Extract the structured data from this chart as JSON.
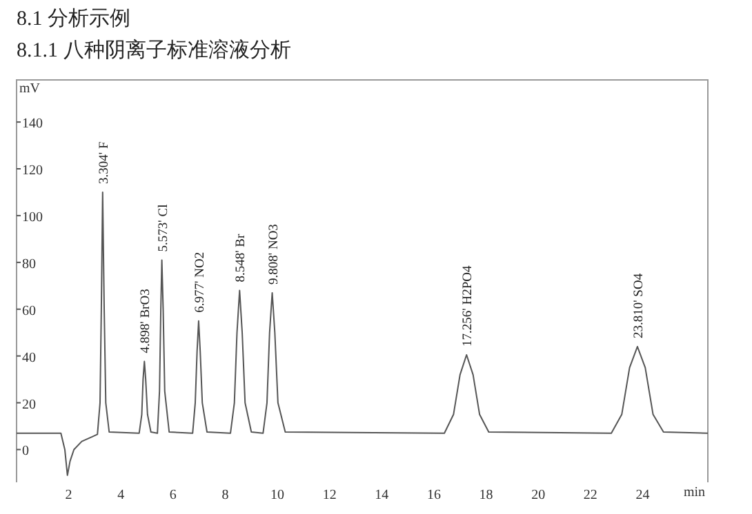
{
  "chart_data": {
    "type": "line",
    "title": "8.1 分析示例",
    "subtitle": "8.1.1 八种阴离子标准溶液分析",
    "xlabel": "min",
    "ylabel": "mV",
    "series": [
      {
        "color": "#555555",
        "x": [
          0,
          1.7,
          1.85,
          1.95,
          2.05,
          2.2,
          2.5,
          2.9,
          3.1,
          3.2,
          3.25,
          3.3,
          3.36,
          3.42,
          3.55,
          4.7,
          4.8,
          4.85,
          4.9,
          4.95,
          5.02,
          5.15,
          5.4,
          5.48,
          5.53,
          5.57,
          5.62,
          5.68,
          5.85,
          6.75,
          6.85,
          6.92,
          6.98,
          7.04,
          7.12,
          7.3,
          8.2,
          8.35,
          8.45,
          8.55,
          8.65,
          8.76,
          9.0,
          9.45,
          9.6,
          9.7,
          9.8,
          9.9,
          10.02,
          10.3,
          16.4,
          16.75,
          17.0,
          17.25,
          17.5,
          17.75,
          18.1,
          22.8,
          23.2,
          23.5,
          23.8,
          24.1,
          24.4,
          24.8,
          26.5
        ],
        "values": [
          7,
          7,
          0,
          -11,
          -5,
          0,
          3.5,
          5.5,
          6.5,
          20,
          60,
          110,
          60,
          20,
          7.5,
          7,
          15,
          30,
          37.7,
          30,
          15,
          7.5,
          7,
          25,
          60,
          81,
          60,
          25,
          7.5,
          7,
          20,
          42,
          55,
          42,
          20,
          7.5,
          7,
          20,
          50,
          68,
          50,
          20,
          7.5,
          7,
          20,
          50,
          67,
          50,
          20,
          7.5,
          7,
          15,
          32,
          40.5,
          32,
          15,
          7.5,
          7,
          15,
          35,
          44,
          35,
          15,
          7.5,
          7
        ]
      }
    ],
    "xlim": [
      0,
      26.5
    ],
    "ylim": [
      -14,
      158
    ],
    "xticks": [
      2,
      4,
      6,
      8,
      10,
      12,
      14,
      16,
      18,
      20,
      22,
      24
    ],
    "yticks": [
      0,
      20,
      40,
      60,
      80,
      100,
      120,
      140
    ],
    "grid": false,
    "marker": "none",
    "line_style": "solid",
    "annotations": [
      {
        "text": "3.304' F",
        "x": 3.3,
        "y": 110
      },
      {
        "text": "4.898' BrO3",
        "x": 4.9,
        "y": 37.7
      },
      {
        "text": "5.573' Cl",
        "x": 5.57,
        "y": 81
      },
      {
        "text": "6.977' NO2",
        "x": 6.98,
        "y": 55
      },
      {
        "text": "8.548' Br",
        "x": 8.55,
        "y": 68
      },
      {
        "text": "9.808' NO3",
        "x": 9.8,
        "y": 67
      },
      {
        "text": "17.256' H2PO4",
        "x": 17.25,
        "y": 40.5
      },
      {
        "text": "23.810' SO4",
        "x": 23.8,
        "y": 44
      }
    ]
  }
}
